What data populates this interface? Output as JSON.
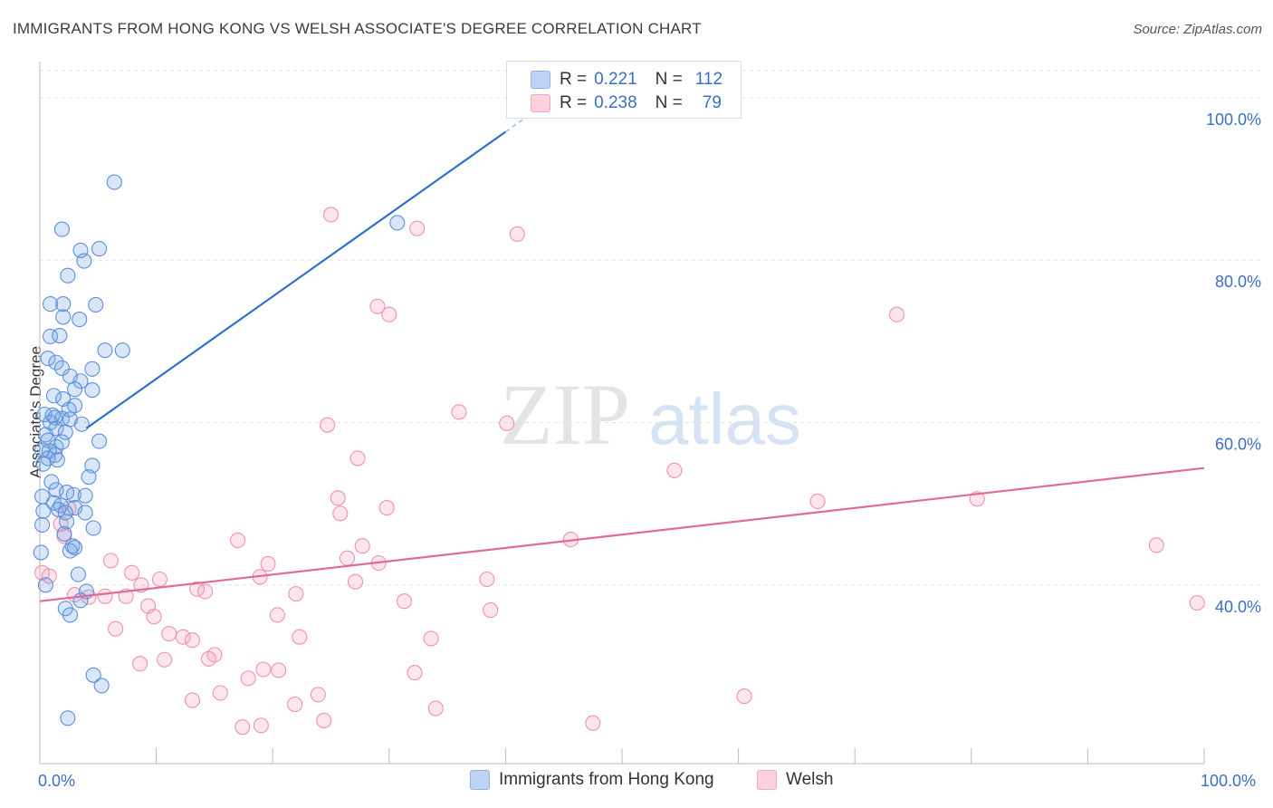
{
  "title": "IMMIGRANTS FROM HONG KONG VS WELSH ASSOCIATE'S DEGREE CORRELATION CHART",
  "source": "Source: ZipAtlas.com",
  "watermark": {
    "zip": "ZIP",
    "atlas": "atlas"
  },
  "legend": {
    "series1": {
      "r_label": "R =",
      "r_value": "0.221",
      "n_label": "N =",
      "n_value": "112"
    },
    "series2": {
      "r_label": "R =",
      "r_value": "0.238",
      "n_label": "N =",
      "n_value": "79"
    }
  },
  "colors": {
    "blue": "#5b8fd9",
    "blue_line": "#2f6fcc",
    "pink": "#f08fb0",
    "pink_line": "#e06a98",
    "tick": "#3a6fc4"
  },
  "chart_data": {
    "type": "scatter",
    "title": "IMMIGRANTS FROM HONG KONG VS WELSH ASSOCIATE'S DEGREE CORRELATION CHART",
    "xlabel": "",
    "ylabel": "Associate's Degree",
    "xlim": [
      0,
      100
    ],
    "ylim": [
      18,
      104
    ],
    "x_tick_labels": [
      "0.0%",
      "100.0%"
    ],
    "y_ticks": [
      40,
      60,
      80,
      100
    ],
    "y_tick_labels": [
      "40.0%",
      "60.0%",
      "80.0%",
      "100.0%"
    ],
    "grid": true,
    "legend_position": "top-center",
    "series": [
      {
        "name": "Immigrants from Hong Kong",
        "color": "#5b8fd9",
        "trend": {
          "x": [
            4.0,
            40.0
          ],
          "y": [
            59.3,
            95.8
          ]
        },
        "trend_dashed": {
          "x": [
            40.0,
            46.0
          ],
          "y": [
            95.8,
            101.9
          ]
        },
        "points": [
          [
            6.4,
            89.6
          ],
          [
            1.9,
            83.8
          ],
          [
            3.5,
            81.2
          ],
          [
            5.1,
            81.4
          ],
          [
            2.4,
            78.1
          ],
          [
            3.8,
            79.9
          ],
          [
            0.9,
            74.6
          ],
          [
            2.0,
            74.6
          ],
          [
            2.0,
            73.0
          ],
          [
            3.4,
            72.7
          ],
          [
            4.8,
            74.5
          ],
          [
            0.9,
            70.6
          ],
          [
            1.7,
            70.7
          ],
          [
            5.6,
            68.9
          ],
          [
            7.1,
            68.9
          ],
          [
            0.7,
            67.9
          ],
          [
            1.4,
            67.4
          ],
          [
            1.9,
            66.7
          ],
          [
            4.5,
            66.6
          ],
          [
            2.6,
            65.7
          ],
          [
            3.5,
            65.1
          ],
          [
            3.0,
            64.1
          ],
          [
            4.5,
            64.0
          ],
          [
            1.2,
            63.3
          ],
          [
            2.0,
            62.9
          ],
          [
            3.0,
            62.1
          ],
          [
            2.5,
            61.6
          ],
          [
            0.4,
            61.0
          ],
          [
            1.3,
            60.6
          ],
          [
            1.9,
            60.5
          ],
          [
            0.9,
            60.0
          ],
          [
            3.6,
            59.8
          ],
          [
            1.4,
            59.3
          ],
          [
            2.2,
            58.8
          ],
          [
            0.5,
            58.5
          ],
          [
            0.7,
            57.8
          ],
          [
            1.9,
            57.6
          ],
          [
            5.1,
            57.7
          ],
          [
            1.4,
            57.0
          ],
          [
            0.2,
            56.6
          ],
          [
            0.8,
            56.5
          ],
          [
            1.3,
            56.0
          ],
          [
            0.7,
            55.6
          ],
          [
            1.5,
            55.4
          ],
          [
            0.3,
            54.9
          ],
          [
            4.5,
            54.7
          ],
          [
            4.2,
            53.3
          ],
          [
            1.0,
            52.7
          ],
          [
            1.4,
            51.7
          ],
          [
            2.3,
            51.4
          ],
          [
            2.9,
            51.1
          ],
          [
            3.9,
            51.0
          ],
          [
            0.2,
            50.9
          ],
          [
            1.2,
            50.1
          ],
          [
            1.8,
            49.8
          ],
          [
            0.3,
            49.1
          ],
          [
            1.6,
            49.3
          ],
          [
            3.0,
            49.5
          ],
          [
            2.2,
            48.9
          ],
          [
            3.9,
            48.9
          ],
          [
            0.2,
            47.4
          ],
          [
            2.3,
            47.8
          ],
          [
            4.6,
            47.0
          ],
          [
            2.1,
            46.3
          ],
          [
            2.8,
            44.8
          ],
          [
            3.0,
            44.6
          ],
          [
            2.6,
            44.2
          ],
          [
            3.3,
            41.3
          ],
          [
            0.5,
            40.0
          ],
          [
            4.0,
            39.2
          ],
          [
            3.5,
            38.1
          ],
          [
            2.2,
            37.1
          ],
          [
            2.6,
            36.3
          ],
          [
            4.6,
            28.9
          ],
          [
            5.3,
            27.6
          ],
          [
            2.4,
            23.6
          ],
          [
            0.1,
            44.0
          ],
          [
            30.7,
            84.6
          ],
          [
            1.1,
            60.9
          ],
          [
            2.6,
            60.4
          ]
        ]
      },
      {
        "name": "Welsh",
        "color": "#f08fb0",
        "trend": {
          "x": [
            0,
            100
          ],
          "y": [
            38.0,
            54.4
          ]
        },
        "points": [
          [
            25.0,
            85.6
          ],
          [
            32.4,
            83.9
          ],
          [
            41.0,
            83.2
          ],
          [
            29.0,
            74.3
          ],
          [
            30.0,
            73.3
          ],
          [
            73.6,
            73.3
          ],
          [
            36.0,
            61.3
          ],
          [
            24.7,
            59.7
          ],
          [
            40.1,
            59.9
          ],
          [
            54.5,
            54.1
          ],
          [
            27.3,
            55.6
          ],
          [
            25.6,
            50.7
          ],
          [
            29.8,
            49.5
          ],
          [
            66.8,
            50.3
          ],
          [
            80.5,
            50.6
          ],
          [
            25.8,
            48.8
          ],
          [
            2.5,
            49.4
          ],
          [
            1.8,
            47.5
          ],
          [
            2.1,
            46.0
          ],
          [
            17.0,
            45.5
          ],
          [
            45.6,
            45.6
          ],
          [
            95.9,
            44.9
          ],
          [
            27.7,
            44.8
          ],
          [
            6.1,
            43.0
          ],
          [
            26.4,
            43.3
          ],
          [
            29.1,
            42.7
          ],
          [
            19.6,
            42.6
          ],
          [
            7.9,
            41.5
          ],
          [
            10.3,
            40.7
          ],
          [
            18.9,
            41.0
          ],
          [
            27.1,
            40.4
          ],
          [
            38.4,
            40.7
          ],
          [
            0.8,
            41.1
          ],
          [
            8.7,
            40.0
          ],
          [
            13.5,
            39.5
          ],
          [
            14.2,
            39.2
          ],
          [
            22.0,
            38.9
          ],
          [
            4.2,
            38.5
          ],
          [
            5.6,
            38.6
          ],
          [
            7.4,
            38.6
          ],
          [
            3.0,
            38.8
          ],
          [
            31.3,
            38.0
          ],
          [
            9.3,
            37.4
          ],
          [
            9.8,
            36.1
          ],
          [
            20.4,
            36.3
          ],
          [
            38.7,
            36.9
          ],
          [
            99.4,
            37.8
          ],
          [
            6.5,
            34.6
          ],
          [
            11.1,
            34.0
          ],
          [
            12.3,
            33.6
          ],
          [
            13.1,
            33.2
          ],
          [
            22.3,
            33.6
          ],
          [
            33.6,
            33.4
          ],
          [
            15.0,
            31.4
          ],
          [
            10.7,
            30.8
          ],
          [
            14.5,
            30.9
          ],
          [
            8.6,
            30.3
          ],
          [
            19.2,
            29.6
          ],
          [
            20.5,
            29.5
          ],
          [
            17.9,
            28.5
          ],
          [
            32.2,
            29.2
          ],
          [
            23.9,
            26.5
          ],
          [
            15.5,
            26.7
          ],
          [
            60.5,
            26.3
          ],
          [
            21.9,
            25.3
          ],
          [
            13.1,
            25.8
          ],
          [
            34.0,
            24.8
          ],
          [
            24.4,
            23.3
          ],
          [
            19.0,
            22.7
          ],
          [
            17.4,
            22.5
          ],
          [
            47.5,
            23.0
          ],
          [
            0.2,
            41.5
          ]
        ]
      }
    ]
  }
}
